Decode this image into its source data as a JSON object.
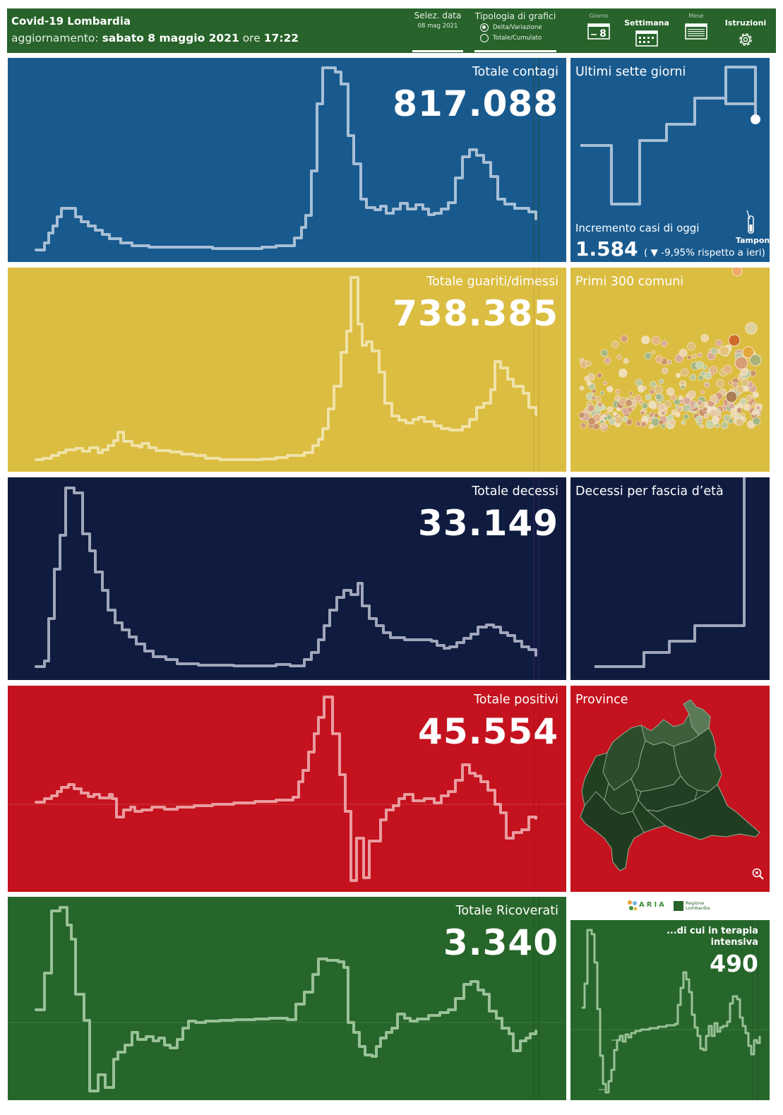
{
  "header": {
    "title": "Covid-19 Lombardia",
    "update_prefix": "aggiornamento:",
    "update_date": "sabato 8 maggio 2021",
    "update_mid": "ore",
    "update_time": "17:22",
    "date_label": "Selez. data",
    "date_value": "08 mag 2021",
    "chart_type_label": "Tipologia di grafici",
    "chart_type_options": [
      "Delta/Variazione",
      "Totale/Cumulato"
    ],
    "chart_type_selected": "Delta/Variazione",
    "buttons": {
      "giorno": "Giorno",
      "giorno_day": "8",
      "settimana": "Settimana",
      "mese": "Mese",
      "istruzioni": "Istruzioni"
    }
  },
  "panels": {
    "contagi": {
      "title": "Totale contagi",
      "value": "817.088",
      "color": "#195a8e"
    },
    "guariti": {
      "title": "Totale guariti/dimessi",
      "value": "738.385",
      "color": "#dbbd41"
    },
    "decessi": {
      "title": "Totale decessi",
      "value": "33.149",
      "color": "#0f1c3f"
    },
    "positivi": {
      "title": "Totale positivi",
      "value": "45.554",
      "color": "#c4121e"
    },
    "ricoverati": {
      "title": "Totale Ricoverati",
      "value": "3.340",
      "color": "#27662b"
    }
  },
  "side": {
    "ultimi": {
      "title": "Ultimi sette giorni",
      "increment_label": "Incremento casi di oggi",
      "increment_value": "1.584",
      "delta_text": "( ▼ -9,95% rispetto a  ieri)",
      "tamponi": "Tamponi"
    },
    "comuni": {
      "title": "Primi 300 comuni"
    },
    "eta": {
      "title": "Decessi per fascia d’età"
    },
    "province": {
      "title": "Province"
    },
    "terapia": {
      "title_line1": "...di cui in terapia",
      "title_line2": "intensiva",
      "value": "490"
    },
    "logos": {
      "aria": "ARIA",
      "regione_line1": "Regione",
      "regione_line2": "Lombardia"
    }
  },
  "icons": [
    "calendar-icon",
    "calendar-week-icon",
    "calendar-month-icon",
    "gear-icon",
    "test-tube-icon",
    "zoom-icon"
  ]
}
